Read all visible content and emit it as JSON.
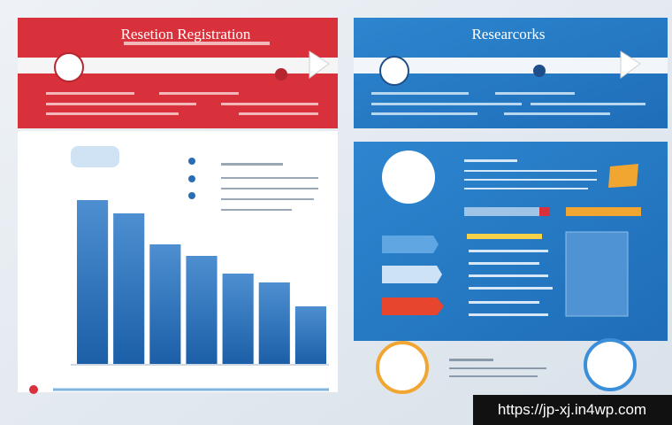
{
  "header": {
    "left_title": "Resetion Registration",
    "right_title": "Researcorks"
  },
  "chart": {
    "values": [
      185,
      170,
      135,
      122,
      102,
      92,
      65
    ]
  },
  "watermark": "https://jp-xj.in4wp.com"
}
